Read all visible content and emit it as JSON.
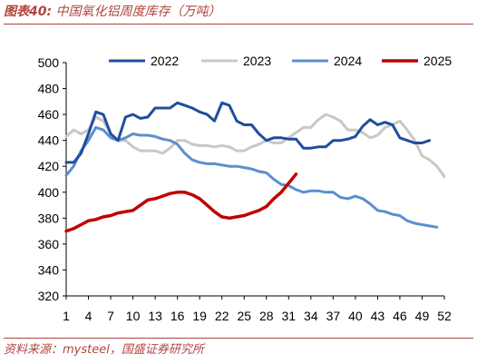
{
  "caption": {
    "label": "图表40:",
    "title": "中国氧化铝周度库存（万吨）"
  },
  "source": "资料来源：mysteel，国盛证券研究所",
  "colors": {
    "s2022": "#1f4e9c",
    "s2023": "#c8c8c8",
    "s2024": "#5b8fd0",
    "s2025": "#c00000",
    "accent": "#b0453f"
  },
  "chart_data": {
    "type": "line",
    "title": "中国氧化铝周度库存（万吨）",
    "xlabel": "",
    "ylabel": "",
    "xlim": [
      1,
      52
    ],
    "ylim": [
      320,
      500
    ],
    "xticks": [
      1,
      4,
      7,
      10,
      13,
      16,
      19,
      22,
      25,
      28,
      31,
      34,
      37,
      40,
      43,
      46,
      49,
      52
    ],
    "yticks": [
      320,
      340,
      360,
      380,
      400,
      420,
      440,
      460,
      480,
      500
    ],
    "grid": false,
    "legend": "top",
    "series": [
      {
        "name": "2022",
        "x": [
          1,
          2,
          3,
          4,
          5,
          6,
          7,
          8,
          9,
          10,
          11,
          12,
          13,
          14,
          15,
          16,
          17,
          18,
          19,
          20,
          21,
          22,
          23,
          24,
          25,
          26,
          27,
          28,
          29,
          30,
          31,
          32,
          33,
          34,
          35,
          36,
          37,
          38,
          39,
          40,
          41,
          42,
          43,
          44,
          45,
          46,
          47,
          48,
          49,
          50
        ],
        "values": [
          423,
          423,
          430,
          445,
          462,
          460,
          445,
          440,
          458,
          460,
          457,
          458,
          465,
          465,
          465,
          469,
          467,
          465,
          462,
          460,
          455,
          469,
          467,
          455,
          452,
          452,
          445,
          440,
          442,
          442,
          441,
          441,
          434,
          434,
          435,
          435,
          440,
          440,
          441,
          443,
          451,
          456,
          452,
          454,
          452,
          442,
          440,
          438,
          438,
          440
        ]
      },
      {
        "name": "2023",
        "x": [
          1,
          2,
          3,
          4,
          5,
          6,
          7,
          8,
          9,
          10,
          11,
          12,
          13,
          14,
          15,
          16,
          17,
          18,
          19,
          20,
          21,
          22,
          23,
          24,
          25,
          26,
          27,
          28,
          29,
          30,
          31,
          32,
          33,
          34,
          35,
          36,
          37,
          38,
          39,
          40,
          41,
          42,
          43,
          44,
          45,
          46,
          47,
          48,
          49,
          50,
          51,
          52
        ],
        "values": [
          443,
          448,
          445,
          448,
          458,
          455,
          445,
          440,
          440,
          435,
          432,
          432,
          432,
          430,
          434,
          440,
          440,
          437,
          436,
          436,
          435,
          436,
          435,
          432,
          432,
          435,
          437,
          440,
          438,
          438,
          442,
          446,
          450,
          450,
          456,
          460,
          458,
          455,
          448,
          448,
          446,
          442,
          444,
          450,
          452,
          455,
          448,
          440,
          428,
          425,
          420,
          412
        ]
      },
      {
        "name": "2024",
        "x": [
          1,
          2,
          3,
          4,
          5,
          6,
          7,
          8,
          9,
          10,
          11,
          12,
          13,
          14,
          15,
          16,
          17,
          18,
          19,
          20,
          21,
          22,
          23,
          24,
          25,
          26,
          27,
          28,
          29,
          30,
          31,
          32,
          33,
          34,
          35,
          36,
          37,
          38,
          39,
          40,
          41,
          42,
          43,
          44,
          45,
          46,
          47,
          48,
          49,
          50,
          51
        ],
        "values": [
          413,
          420,
          432,
          440,
          450,
          448,
          442,
          440,
          442,
          445,
          444,
          444,
          443,
          441,
          440,
          437,
          430,
          425,
          423,
          422,
          422,
          421,
          420,
          420,
          419,
          418,
          416,
          415,
          410,
          406,
          405,
          402,
          400,
          401,
          401,
          400,
          400,
          396,
          395,
          397,
          395,
          391,
          386,
          385,
          383,
          382,
          378,
          376,
          375,
          374,
          373
        ]
      },
      {
        "name": "2025",
        "x": [
          1,
          2,
          3,
          4,
          5,
          6,
          7,
          8,
          9,
          10,
          11,
          12,
          13,
          14,
          15,
          16,
          17,
          18,
          19,
          20,
          21,
          22,
          23,
          24,
          25,
          26,
          27,
          28,
          29,
          30,
          31,
          32
        ],
        "values": [
          370,
          372,
          375,
          378,
          379,
          381,
          382,
          384,
          385,
          386,
          390,
          394,
          395,
          397,
          399,
          400,
          400,
          398,
          395,
          390,
          385,
          381,
          380,
          381,
          382,
          384,
          386,
          389,
          395,
          400,
          407,
          414
        ]
      }
    ]
  }
}
